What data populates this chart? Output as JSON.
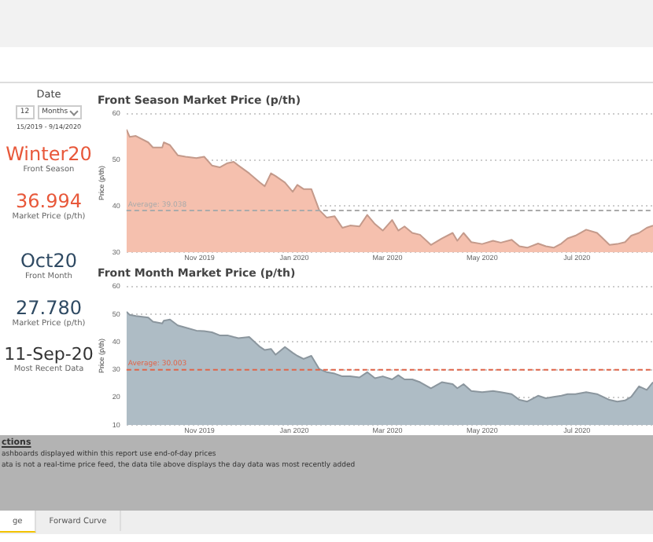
{
  "chart_data": [
    {
      "type": "other",
      "title": "Date",
      "annotations": [
        "12",
        "Months",
        "15/2019 - 9/14/2020",
        "Winter20",
        "Front Season",
        "36.994",
        "Market Price (p/th)",
        "Oct20",
        "Front Month",
        "27.780",
        "Market Price (p/th)",
        "11-Sep-20",
        "Most Recent Data"
      ]
    },
    {
      "type": "area",
      "title": "Front Season Market Price (p/th)",
      "ylabel": "Price (p/th)",
      "x": [
        "2019-09-15",
        "2019-09-17",
        "2019-09-21",
        "2019-09-29",
        "2019-10-02",
        "2019-10-08",
        "2019-10-09",
        "2019-10-13",
        "2019-10-18",
        "2019-10-23",
        "2019-10-30",
        "2019-11-04",
        "2019-11-09",
        "2019-11-14",
        "2019-11-19",
        "2019-11-23",
        "2019-11-26",
        "2019-12-03",
        "2019-12-10",
        "2019-12-13",
        "2019-12-17",
        "2019-12-20",
        "2019-12-26",
        "2019-12-31",
        "2020-01-03",
        "2020-01-07",
        "2020-01-12",
        "2020-01-17",
        "2020-01-22",
        "2020-01-27",
        "2020-02-01",
        "2020-02-06",
        "2020-02-12",
        "2020-02-17",
        "2020-02-22",
        "2020-02-27",
        "2020-03-04",
        "2020-03-08",
        "2020-03-12",
        "2020-03-17",
        "2020-03-22",
        "2020-03-29",
        "2020-04-05",
        "2020-04-12",
        "2020-04-15",
        "2020-04-19",
        "2020-04-24",
        "2020-05-01",
        "2020-05-08",
        "2020-05-13",
        "2020-05-20",
        "2020-05-25",
        "2020-05-30",
        "2020-06-06",
        "2020-06-11",
        "2020-06-16",
        "2020-06-21",
        "2020-06-25",
        "2020-06-30",
        "2020-07-07",
        "2020-07-14",
        "2020-07-22",
        "2020-07-27",
        "2020-08-01",
        "2020-08-05",
        "2020-08-10",
        "2020-08-15",
        "2020-08-19"
      ],
      "values": [
        56.6,
        55,
        55.2,
        53.8,
        52.7,
        52.7,
        53.8,
        53.2,
        51,
        50.7,
        50.4,
        50.7,
        48.8,
        48.4,
        49.3,
        49.6,
        48.8,
        47.1,
        45.1,
        44.3,
        47.1,
        46.5,
        45.1,
        43.1,
        44.6,
        43.7,
        43.7,
        39.2,
        37.5,
        37.8,
        35.3,
        35.8,
        35.6,
        38.1,
        36.1,
        34.7,
        37,
        34.7,
        35.6,
        34.2,
        33.8,
        31.6,
        33,
        34.2,
        32.5,
        34.2,
        32.2,
        31.8,
        32.5,
        32.1,
        32.7,
        31.3,
        31,
        31.9,
        31.3,
        31,
        31.9,
        33,
        33.6,
        34.9,
        34.2,
        31.6,
        31.8,
        32.2,
        33.6,
        34.2,
        35.3,
        35.8
      ],
      "color": "#f5c0ae",
      "xlim": [
        "2019-09-15",
        "2020-08-19"
      ],
      "xticks": [
        {
          "value": "2019-11-01",
          "label": "Nov 2019"
        },
        {
          "value": "2020-01-01",
          "label": "Jan 2020"
        },
        {
          "value": "2020-03-01",
          "label": "Mar 2020"
        },
        {
          "value": "2020-05-01",
          "label": "May 2020"
        },
        {
          "value": "2020-07-01",
          "label": "Jul 2020"
        }
      ],
      "ylim": [
        30,
        60
      ],
      "yticks": [
        30,
        40,
        50,
        60
      ],
      "grid": "y",
      "marker": "none",
      "legend": false,
      "ref_lines": [
        {
          "axis": "y",
          "value": 39.038,
          "label": "Average: 39.038",
          "color": "#aaaaaa",
          "line_style": "dashed"
        }
      ]
    },
    {
      "type": "area",
      "title": "Front Month Market Price (p/th)",
      "ylabel": "Price (p/th)",
      "x": [
        "2019-09-15",
        "2019-09-17",
        "2019-09-21",
        "2019-09-29",
        "2019-10-02",
        "2019-10-08",
        "2019-10-09",
        "2019-10-13",
        "2019-10-18",
        "2019-10-23",
        "2019-10-30",
        "2019-11-04",
        "2019-11-09",
        "2019-11-14",
        "2019-11-19",
        "2019-11-23",
        "2019-11-26",
        "2019-12-03",
        "2019-12-10",
        "2019-12-13",
        "2019-12-17",
        "2019-12-20",
        "2019-12-26",
        "2019-12-31",
        "2020-01-03",
        "2020-01-07",
        "2020-01-12",
        "2020-01-17",
        "2020-01-22",
        "2020-01-27",
        "2020-02-01",
        "2020-02-06",
        "2020-02-12",
        "2020-02-17",
        "2020-02-22",
        "2020-02-27",
        "2020-03-04",
        "2020-03-08",
        "2020-03-12",
        "2020-03-17",
        "2020-03-22",
        "2020-03-29",
        "2020-04-05",
        "2020-04-12",
        "2020-04-15",
        "2020-04-19",
        "2020-04-24",
        "2020-05-01",
        "2020-05-08",
        "2020-05-13",
        "2020-05-20",
        "2020-05-25",
        "2020-05-30",
        "2020-06-06",
        "2020-06-11",
        "2020-06-16",
        "2020-06-21",
        "2020-06-25",
        "2020-06-30",
        "2020-07-07",
        "2020-07-14",
        "2020-07-22",
        "2020-07-27",
        "2020-08-01",
        "2020-08-05",
        "2020-08-10",
        "2020-08-15",
        "2020-08-19"
      ],
      "values": [
        50.9,
        49.8,
        49.4,
        48.8,
        47.3,
        46.7,
        47.7,
        48.1,
        46,
        45.2,
        44.1,
        43.9,
        43.5,
        42.4,
        42.4,
        41.8,
        41.4,
        41.8,
        38.2,
        37.1,
        37.5,
        35.4,
        38.2,
        36.1,
        35,
        33.9,
        35,
        30.3,
        29.1,
        28.6,
        27.6,
        27.6,
        27.2,
        29.1,
        26.9,
        27.6,
        26.5,
        28,
        26.5,
        26.5,
        25.5,
        23.3,
        25.5,
        24.8,
        23.3,
        24.8,
        22.3,
        21.9,
        22.3,
        21.9,
        21.2,
        19.1,
        18.5,
        20.6,
        19.7,
        20.2,
        20.6,
        21.2,
        21.2,
        21.9,
        21.2,
        19.1,
        18.5,
        18.9,
        20.2,
        24,
        22.7,
        25.5
      ],
      "color": "#aebcc5",
      "xlim": [
        "2019-09-15",
        "2020-08-19"
      ],
      "xticks": [
        {
          "value": "2019-11-01",
          "label": "Nov 2019"
        },
        {
          "value": "2020-01-01",
          "label": "Jan 2020"
        },
        {
          "value": "2020-03-01",
          "label": "Mar 2020"
        },
        {
          "value": "2020-05-01",
          "label": "May 2020"
        },
        {
          "value": "2020-07-01",
          "label": "Jul 2020"
        }
      ],
      "ylim": [
        10,
        60
      ],
      "yticks": [
        10,
        20,
        30,
        40,
        50,
        60
      ],
      "grid": "y",
      "marker": "none",
      "legend": false,
      "ref_lines": [
        {
          "axis": "y",
          "value": 30.003,
          "label": "Average: 30.003",
          "color": "#e0654a",
          "line_style": "dashed"
        }
      ]
    },
    {
      "type": "other",
      "title": "ctions",
      "annotations": [
        "ashboards displayed within this report use end-of-day prices",
        "ata is not a real-time price feed, the data tile above displays the day data was most recently added",
        "ge",
        "Forward Curve"
      ]
    }
  ]
}
